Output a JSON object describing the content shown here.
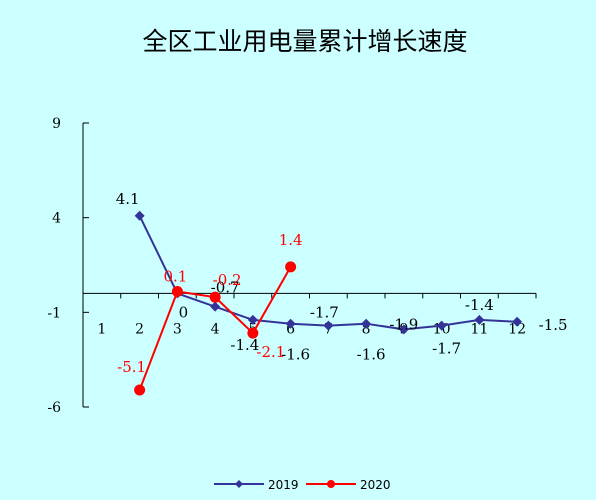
{
  "chart_data": {
    "type": "line",
    "title": "全区工业用电量累计增长速度",
    "x": [
      1,
      2,
      3,
      4,
      5,
      6,
      7,
      8,
      9,
      10,
      11,
      12
    ],
    "x_tick_labels": [
      "1",
      "2",
      "3",
      "4",
      "5",
      "6",
      "7",
      "8",
      "9",
      "10",
      "11",
      "12"
    ],
    "ylim": [
      -6,
      9
    ],
    "y_ticks": [
      -6,
      -1,
      4,
      9
    ],
    "y_tick_labels": [
      "-6",
      "-1",
      "4",
      "9"
    ],
    "legend_position": "bottom",
    "series": [
      {
        "name": "2019",
        "color": "#333399",
        "marker": "diamond",
        "x": [
          2,
          3,
          4,
          5,
          6,
          7,
          8,
          9,
          10,
          11,
          12
        ],
        "values": [
          4.1,
          0.0,
          -0.7,
          -1.4,
          -1.6,
          -1.7,
          -1.6,
          -1.9,
          -1.7,
          -1.4,
          -1.5
        ],
        "labels": [
          "4.1",
          "0",
          "-0.7",
          "-1.4",
          "-1.6",
          "-1.7",
          "-1.6",
          "-1.9",
          "-1.7",
          "-1.4",
          "-1.5"
        ]
      },
      {
        "name": "2020",
        "color": "#ff0000",
        "marker": "circle",
        "x": [
          2,
          3,
          4,
          5,
          6
        ],
        "values": [
          -5.1,
          0.1,
          -0.2,
          -2.1,
          1.4
        ],
        "labels": [
          "-5.1",
          "0.1",
          "-0.2",
          "-2.1",
          "1.4"
        ]
      }
    ]
  }
}
